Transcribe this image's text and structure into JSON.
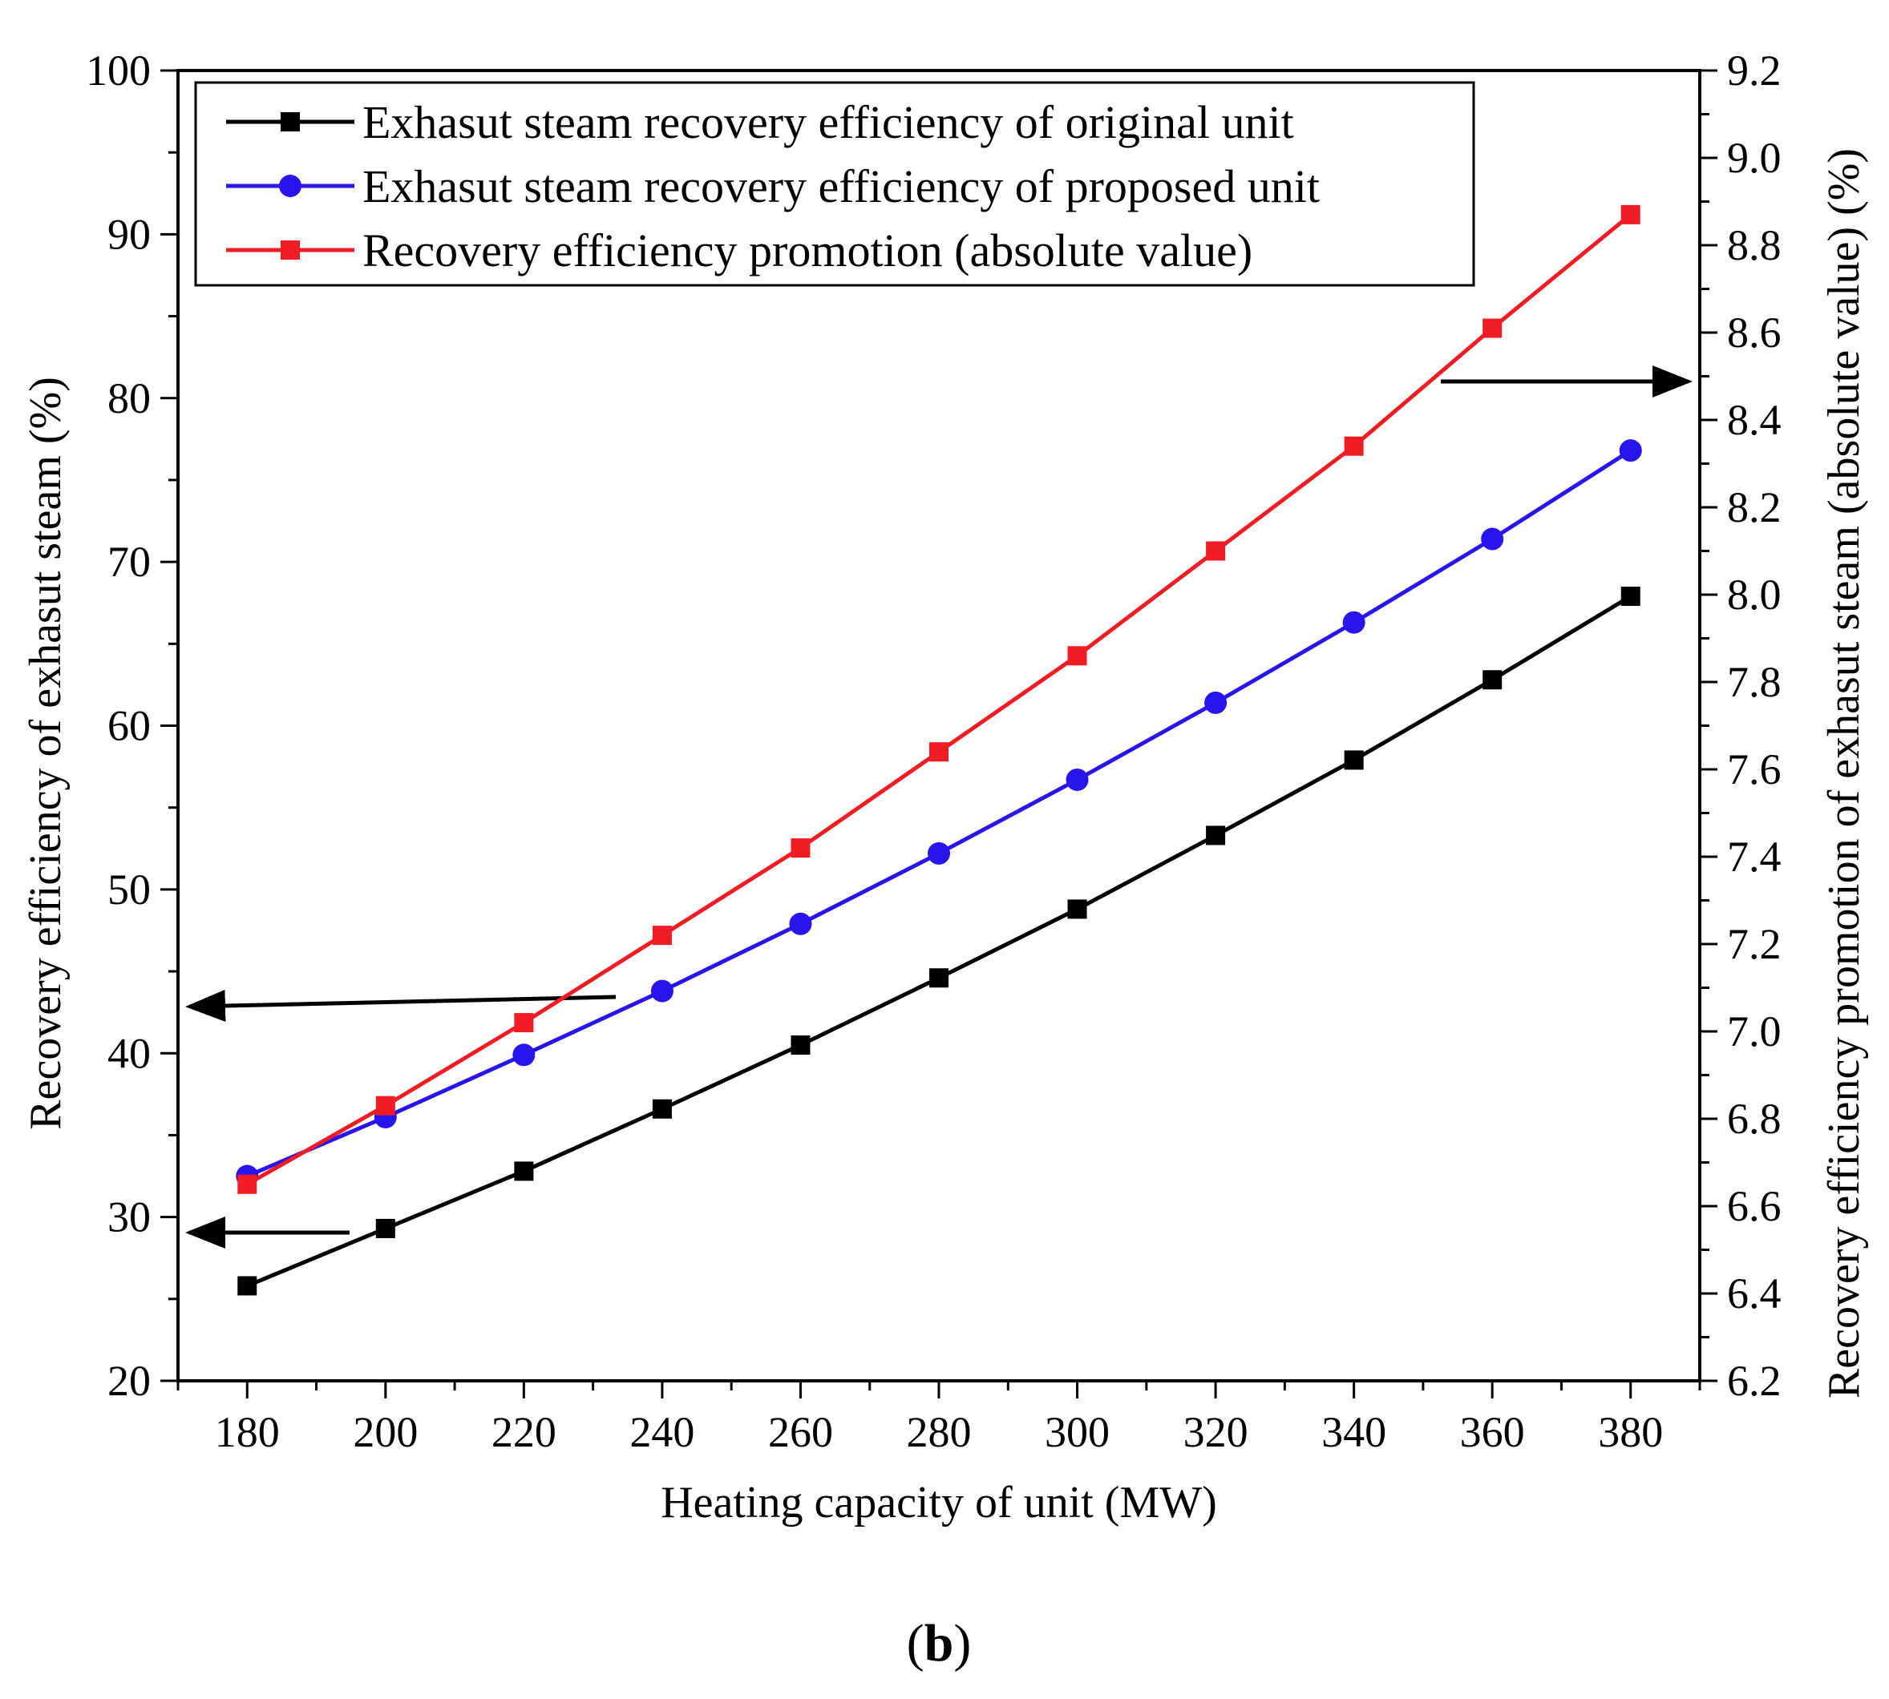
{
  "chart_data": {
    "type": "line",
    "xlabel": "Heating capacity of unit (MW)",
    "ylabel_left": "Recovery efficiency of exhasut steam (%)",
    "ylabel_right": "Recovery efficiency promotion of exhasut steam (absolute value) (%)",
    "x": [
      180,
      200,
      220,
      240,
      260,
      280,
      300,
      320,
      340,
      360,
      380
    ],
    "xlim": [
      170,
      390
    ],
    "ylim_left": [
      20,
      100
    ],
    "ylim_right": [
      6.2,
      9.2
    ],
    "x_ticks": [
      "180",
      "200",
      "220",
      "240",
      "260",
      "280",
      "300",
      "320",
      "340",
      "360",
      "380"
    ],
    "y_left_ticks": [
      "20",
      "30",
      "40",
      "50",
      "60",
      "70",
      "80",
      "90",
      "100"
    ],
    "y_right_ticks": [
      "6.2",
      "6.4",
      "6.6",
      "6.8",
      "7.0",
      "7.2",
      "7.4",
      "7.6",
      "7.8",
      "8.0",
      "8.2",
      "8.4",
      "8.6",
      "8.8",
      "9.0",
      "9.2"
    ],
    "series": [
      {
        "name": "Exhasut steam recovery efficiency of original unit",
        "axis": "left",
        "color": "#000000",
        "marker": "square",
        "values": [
          25.8,
          29.3,
          32.8,
          36.6,
          40.5,
          44.6,
          48.8,
          53.3,
          57.9,
          62.8,
          67.9
        ]
      },
      {
        "name": "Exhasut steam recovery efficiency of proposed unit",
        "axis": "left",
        "color": "#2a14ee",
        "marker": "circle",
        "values": [
          32.5,
          36.1,
          39.9,
          43.8,
          47.9,
          52.2,
          56.7,
          61.4,
          66.3,
          71.4,
          76.8
        ]
      },
      {
        "name": "Recovery efficiency promotion (absolute value)",
        "axis": "right",
        "color": "#f21c24",
        "marker": "square",
        "values": [
          6.65,
          6.83,
          7.02,
          7.22,
          7.42,
          7.64,
          7.86,
          8.1,
          8.34,
          8.61,
          8.87
        ]
      }
    ],
    "legend_position": "top-left",
    "annotations": [
      "arrows pointing from series to their axes"
    ]
  },
  "caption": {
    "open": "(",
    "letter": "b",
    "close": ")"
  }
}
